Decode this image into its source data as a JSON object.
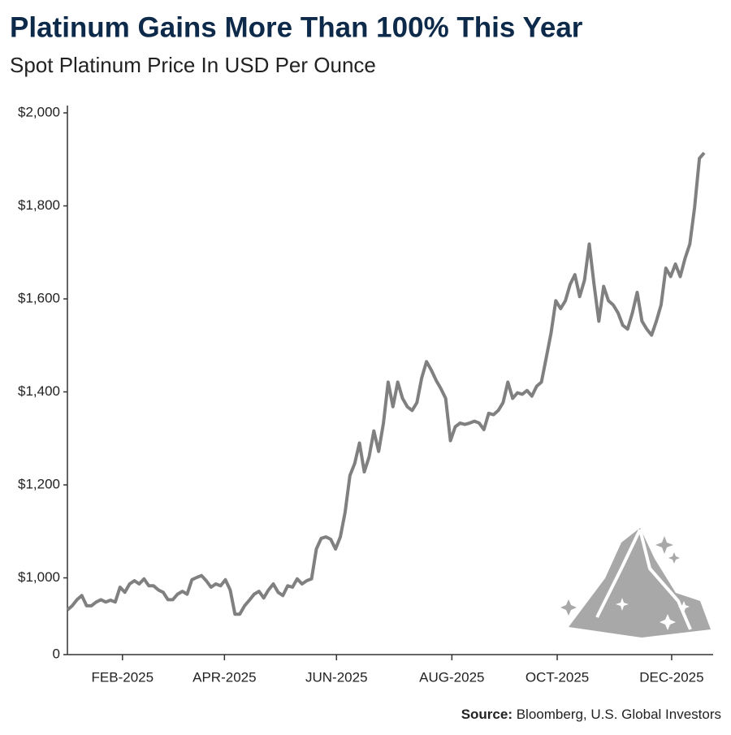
{
  "chart_data": {
    "type": "line",
    "title": "Platinum Gains More Than 100% This Year",
    "subtitle": "Spot Platinum Price In USD Per Ounce",
    "source_label": "Source:",
    "source": "Bloomberg, U.S. Global Investors",
    "y_axis_break": true,
    "ylim": [
      835,
      2000
    ],
    "yticks": [
      {
        "value": 0,
        "label": "0"
      },
      {
        "value": 1000,
        "label": "$1,000"
      },
      {
        "value": 1200,
        "label": "$1,200"
      },
      {
        "value": 1400,
        "label": "$1,400"
      },
      {
        "value": 1600,
        "label": "$1,600"
      },
      {
        "value": 1800,
        "label": "$1,800"
      },
      {
        "value": 2000,
        "label": "$2,000"
      }
    ],
    "xlim": [
      0,
      133
    ],
    "xticks": [
      {
        "value": 11.5,
        "label": "FEB-2025"
      },
      {
        "value": 32.8,
        "label": "APR-2025"
      },
      {
        "value": 56.2,
        "label": "JUN-2025"
      },
      {
        "value": 80.3,
        "label": "AUG-2025"
      },
      {
        "value": 102.3,
        "label": "OCT-2025"
      },
      {
        "value": 126.2,
        "label": "DEC-2025"
      }
    ],
    "series": [
      {
        "color": "#808080",
        "values": [
          931,
          940,
          953,
          962,
          940,
          940,
          948,
          953,
          948,
          952,
          948,
          980,
          969,
          987,
          994,
          987,
          998,
          983,
          983,
          974,
          969,
          953,
          953,
          965,
          971,
          965,
          996,
          1001,
          1005,
          994,
          980,
          987,
          983,
          996,
          974,
          922,
          922,
          940,
          952,
          965,
          971,
          957,
          974,
          987,
          969,
          962,
          983,
          980,
          998,
          987,
          994,
          998,
          1062,
          1085,
          1088,
          1083,
          1062,
          1088,
          1141,
          1220,
          1246,
          1290,
          1228,
          1260,
          1316,
          1272,
          1333,
          1421,
          1368,
          1421,
          1386,
          1368,
          1360,
          1377,
          1430,
          1465,
          1447,
          1425,
          1407,
          1386,
          1295,
          1325,
          1333,
          1330,
          1333,
          1337,
          1333,
          1319,
          1354,
          1351,
          1360,
          1377,
          1421,
          1386,
          1398,
          1395,
          1403,
          1391,
          1412,
          1421,
          1473,
          1526,
          1596,
          1579,
          1596,
          1631,
          1652,
          1605,
          1640,
          1718,
          1631,
          1552,
          1627,
          1596,
          1587,
          1570,
          1543,
          1535,
          1570,
          1614,
          1552,
          1535,
          1522,
          1552,
          1587,
          1666,
          1648,
          1675,
          1648,
          1687,
          1718,
          1797,
          1902,
          1914
        ]
      }
    ]
  }
}
